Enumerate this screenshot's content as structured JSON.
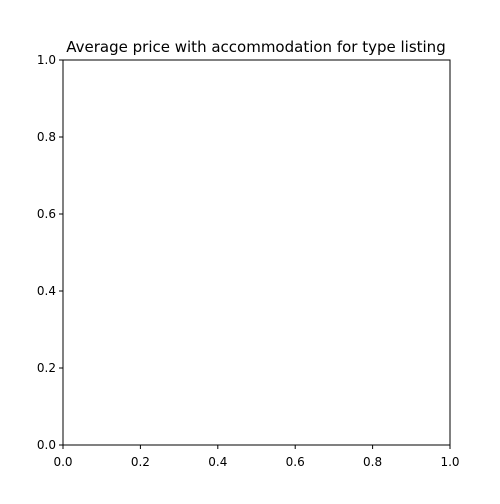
{
  "chart_data": {
    "type": "bar",
    "title": "Average price with accommodation for type listing",
    "xlabel": "",
    "ylabel": "",
    "xlim": [
      0.0,
      1.0
    ],
    "ylim": [
      0.0,
      1.0
    ],
    "xticks": [
      0.0,
      0.2,
      0.4,
      0.6,
      0.8,
      1.0
    ],
    "yticks": [
      0.0,
      0.2,
      0.4,
      0.6,
      0.8,
      1.0
    ],
    "xtick_labels": [
      "0.0",
      "0.2",
      "0.4",
      "0.6",
      "0.8",
      "1.0"
    ],
    "ytick_labels": [
      "0.0",
      "0.2",
      "0.4",
      "0.6",
      "0.8",
      "1.0"
    ],
    "categories": [],
    "values": [],
    "grid": false,
    "legend": "none",
    "colors": {
      "axis": "#000000",
      "background": "#ffffff"
    }
  }
}
